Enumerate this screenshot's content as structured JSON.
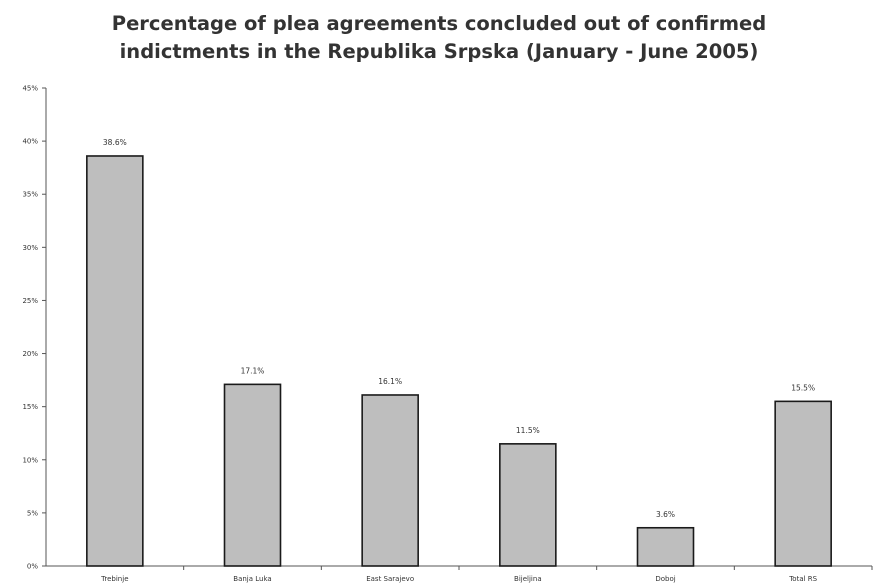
{
  "chart_data": {
    "type": "bar",
    "title_lines": [
      "Percentage of plea agreements concluded out of confirmed",
      "indictments in the Republika Srpska (January - June 2005)"
    ],
    "categories": [
      "Trebinje",
      "Banja Luka",
      "East Sarajevo",
      "Bijeljina",
      "Doboj",
      "Total RS"
    ],
    "values": [
      38.6,
      17.1,
      16.1,
      11.5,
      3.6,
      15.5
    ],
    "data_labels": [
      "38.6%",
      "17.1%",
      "16.1%",
      "11.5%",
      "3.6%",
      "15.5%"
    ],
    "y_ticks": [
      "0%",
      "5%",
      "10%",
      "15%",
      "20%",
      "25%",
      "30%",
      "35%",
      "40%",
      "45%"
    ],
    "ylim": [
      0,
      45
    ],
    "xlabel": "",
    "ylabel": "",
    "grid": false,
    "legend": "none",
    "bar_color": "#bebebe",
    "bar_edge_color": "#1a1a1a"
  }
}
